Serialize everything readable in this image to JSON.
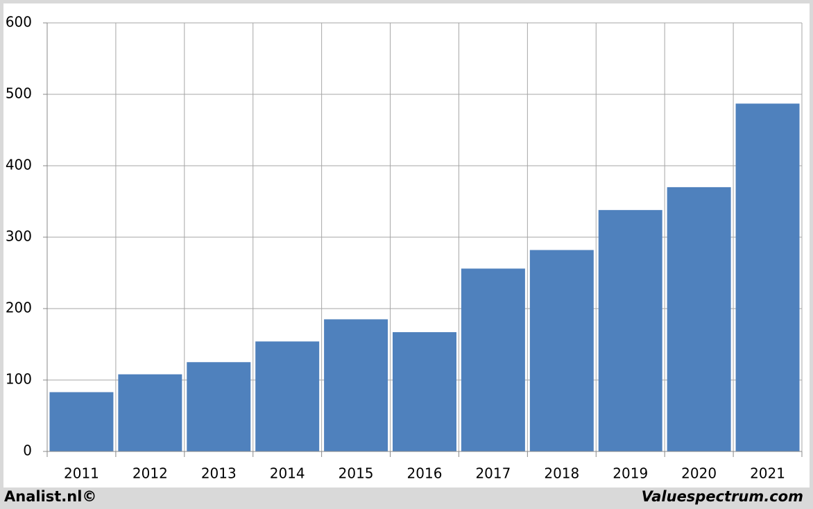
{
  "chart_data": {
    "type": "bar",
    "categories": [
      "2011",
      "2012",
      "2013",
      "2014",
      "2015",
      "2016",
      "2017",
      "2018",
      "2019",
      "2020",
      "2021"
    ],
    "values": [
      83,
      108,
      125,
      154,
      185,
      167,
      256,
      282,
      338,
      370,
      487
    ],
    "color": "#4f81bd",
    "ylim": [
      0,
      600
    ],
    "yticks": [
      0,
      100,
      200,
      300,
      400,
      500,
      600
    ],
    "grid": true,
    "source": "Analist.nl©",
    "credit": "Valuespectrum.com"
  }
}
